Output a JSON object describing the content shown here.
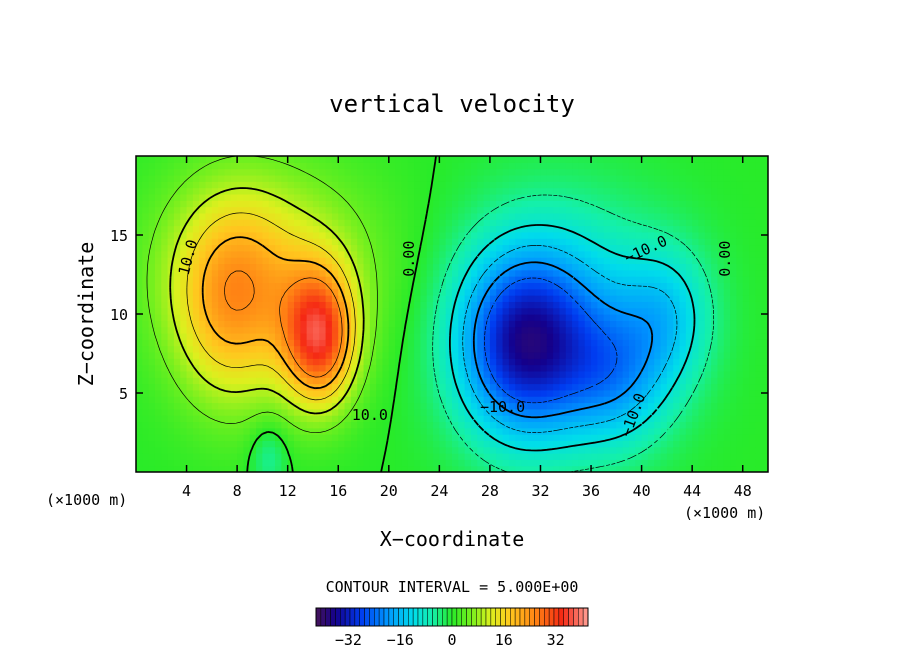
{
  "chart_data": {
    "type": "heatmap",
    "title": "vertical velocity",
    "xlabel": "X−coordinate",
    "ylabel": "Z−coordinate",
    "x_unit_left": "(×1000 m)",
    "x_unit_right": "(×1000 m)",
    "xlim": [
      0,
      50
    ],
    "ylim": [
      0,
      20
    ],
    "x_ticks": [
      4,
      8,
      12,
      16,
      20,
      24,
      28,
      32,
      36,
      40,
      44,
      48
    ],
    "y_ticks": [
      5,
      10,
      15
    ],
    "contour_interval_text": "CONTOUR INTERVAL = 5.000E+00",
    "contour_labels": [
      {
        "text": "10.0",
        "x": 4.5,
        "y": 13.5,
        "rot": -75
      },
      {
        "text": "0.00",
        "x": 22.0,
        "y": 13.5,
        "rot": -90
      },
      {
        "text": "10.0",
        "x": 18.5,
        "y": 3.3,
        "rot": 0
      },
      {
        "text": "−10.0",
        "x": 29.0,
        "y": 3.8,
        "rot": 0
      },
      {
        "text": "−10.0",
        "x": 40.5,
        "y": 13.8,
        "rot": -25
      },
      {
        "text": "−10.0",
        "x": 39.7,
        "y": 3.5,
        "rot": -70
      },
      {
        "text": "0.00",
        "x": 47.0,
        "y": 13.5,
        "rot": -90
      }
    ],
    "colorbar": {
      "range": [
        -42,
        42
      ],
      "tick_values": [
        -32,
        -16,
        0,
        16,
        32
      ],
      "tick_labels": [
        "−32",
        "−16",
        "0",
        "16",
        "32"
      ]
    },
    "field_centers": [
      {
        "x": 7.5,
        "z": 10.5,
        "w": 16,
        "sx": 3.2,
        "sz": 4.5
      },
      {
        "x": 14.5,
        "z": 8.5,
        "w": 30,
        "sx": 2.0,
        "sz": 3.0
      },
      {
        "x": 10.5,
        "z": 13.0,
        "w": 12,
        "sx": 6.0,
        "sz": 4.5
      },
      {
        "x": 30.5,
        "z": 8.0,
        "w": -26,
        "sx": 3.5,
        "sz": 4.0
      },
      {
        "x": 34.0,
        "z": 9.5,
        "w": -14,
        "sx": 5.5,
        "sz": 5.0
      },
      {
        "x": 38.0,
        "z": 6.0,
        "w": -12,
        "sx": 3.0,
        "sz": 3.0
      },
      {
        "x": 42.0,
        "z": 10.0,
        "w": -10,
        "sx": 2.5,
        "sz": 3.0
      },
      {
        "x": 10.5,
        "z": 1.0,
        "w": -6,
        "sx": 1.0,
        "sz": 1.5
      }
    ]
  }
}
